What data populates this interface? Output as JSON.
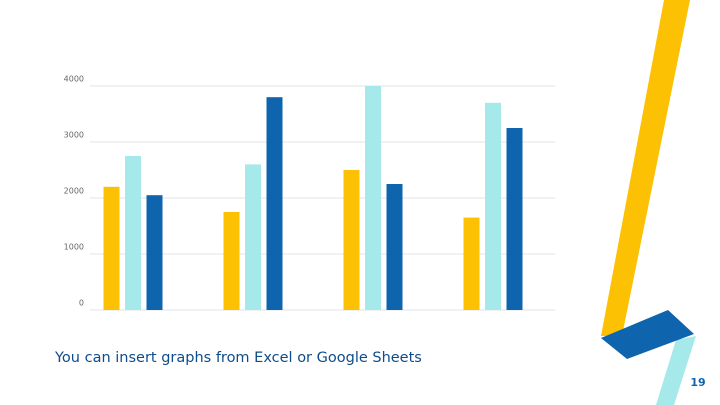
{
  "chart_data": {
    "type": "bar",
    "categories": [
      null,
      null,
      null,
      null
    ],
    "series": [
      {
        "color": "#fbc102",
        "values": [
          2200,
          1750,
          2500,
          1650
        ]
      },
      {
        "color": "#a6e9ea",
        "values": [
          2750,
          2600,
          4000,
          3700
        ]
      },
      {
        "color": "#0e64ad",
        "values": [
          2050,
          3800,
          2250,
          3250
        ]
      }
    ],
    "ylim": [
      0,
      4000
    ],
    "yticks": [
      0,
      1000,
      2000,
      3000,
      4000
    ],
    "grid": true
  },
  "slide": {
    "caption": "You can insert graphs from Excel or Google Sheets",
    "page_number": "19"
  }
}
